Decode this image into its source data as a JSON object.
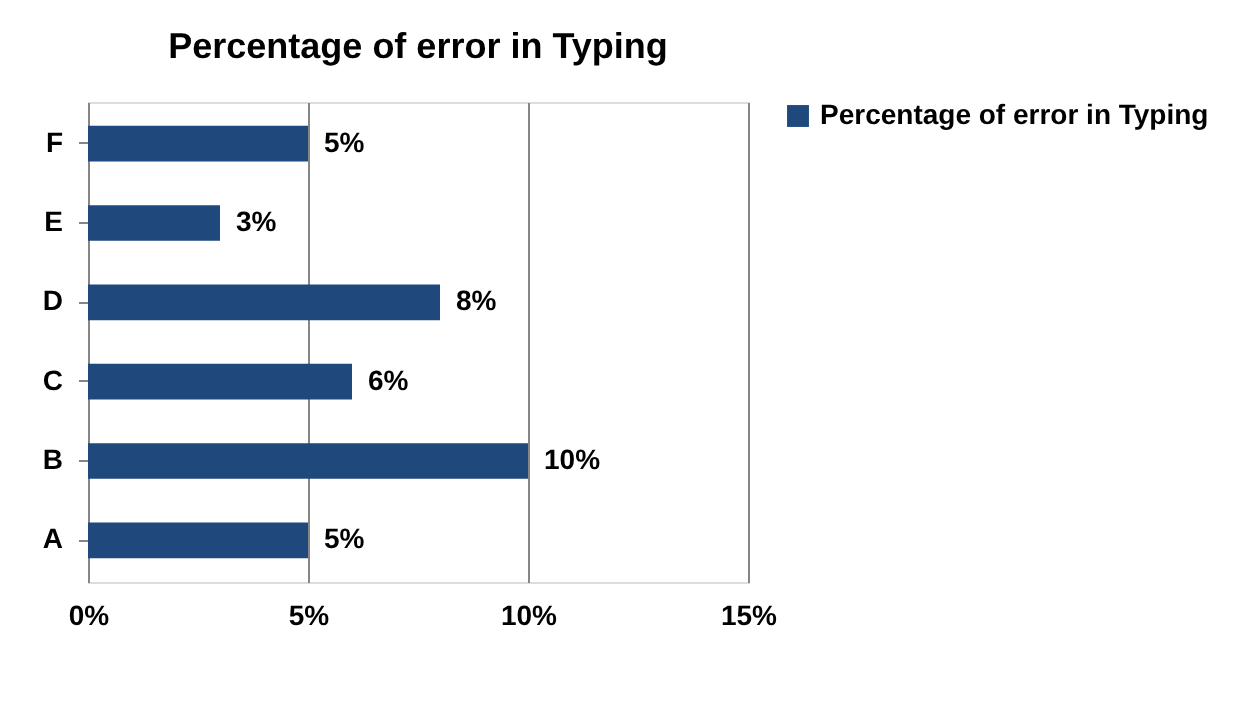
{
  "chart_data": {
    "type": "bar",
    "orientation": "horizontal",
    "title": "Percentage of error in Typing",
    "categories": [
      "F",
      "E",
      "D",
      "C",
      "B",
      "A"
    ],
    "series": [
      {
        "name": "Percentage of error in Typing",
        "color": "#1f497d",
        "values": [
          5,
          3,
          8,
          6,
          10,
          5
        ],
        "value_labels": [
          "5%",
          "3%",
          "8%",
          "6%",
          "10%",
          "5%"
        ]
      }
    ],
    "xlim": [
      0,
      15
    ],
    "xticks": [
      {
        "value": 0,
        "label": "0%"
      },
      {
        "value": 5,
        "label": "5%"
      },
      {
        "value": 10,
        "label": "10%"
      },
      {
        "value": 15,
        "label": "15%"
      }
    ],
    "grid": "x",
    "legend": "right"
  }
}
